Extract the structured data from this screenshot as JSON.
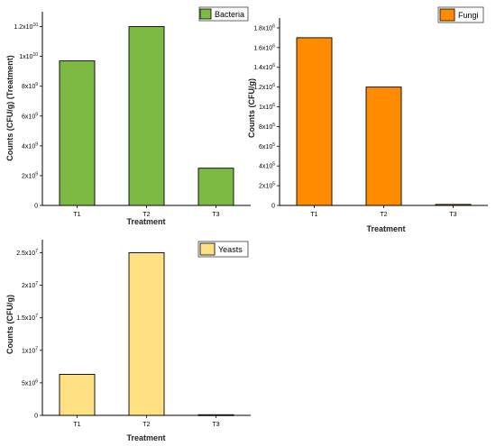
{
  "chart_data": [
    {
      "type": "bar",
      "categories": [
        "T1",
        "T2",
        "T3"
      ],
      "series": [
        {
          "name": "Bacteria",
          "values": [
            9700000000.0,
            12000000000.0,
            2500000000.0
          ]
        }
      ],
      "color": "#7cba44",
      "xlabel": "Treatment",
      "ylabel": "Counts (CFU/g) (Treatment)",
      "ylim": [
        0,
        13000000000.0
      ],
      "yticks": [
        {
          "value": 0,
          "mant": "0",
          "exp": ""
        },
        {
          "value": 2000000000.0,
          "mant": "2x10",
          "exp": "9"
        },
        {
          "value": 4000000000.0,
          "mant": "4x10",
          "exp": "9"
        },
        {
          "value": 6000000000.0,
          "mant": "6x10",
          "exp": "9"
        },
        {
          "value": 8000000000.0,
          "mant": "8x10",
          "exp": "9"
        },
        {
          "value": 10000000000.0,
          "mant": "1x10",
          "exp": "10"
        },
        {
          "value": 12000000000.0,
          "mant": "1.2x10",
          "exp": "10"
        }
      ],
      "legend": "top-right",
      "grid": false
    },
    {
      "type": "bar",
      "categories": [
        "T1",
        "T2",
        "T3"
      ],
      "series": [
        {
          "name": "Fungi",
          "values": [
            1700000.0,
            1200000.0,
            10000.0
          ]
        }
      ],
      "color": "#ff8c00",
      "xlabel": "Treatment",
      "ylabel": "Counts (CFU/g)",
      "ylim": [
        0,
        1900000.0
      ],
      "yticks": [
        {
          "value": 0,
          "mant": "0",
          "exp": ""
        },
        {
          "value": 200000.0,
          "mant": "2x10",
          "exp": "5"
        },
        {
          "value": 400000.0,
          "mant": "4x10",
          "exp": "5"
        },
        {
          "value": 600000.0,
          "mant": "6x10",
          "exp": "5"
        },
        {
          "value": 800000.0,
          "mant": "8x10",
          "exp": "5"
        },
        {
          "value": 1000000.0,
          "mant": "1x10",
          "exp": "6"
        },
        {
          "value": 1200000.0,
          "mant": "1.2x10",
          "exp": "6"
        },
        {
          "value": 1400000.0,
          "mant": "1.4x10",
          "exp": "6"
        },
        {
          "value": 1600000.0,
          "mant": "1.6x10",
          "exp": "6"
        },
        {
          "value": 1800000.0,
          "mant": "1.8x10",
          "exp": "6"
        }
      ],
      "legend": "top-right",
      "grid": false
    },
    {
      "type": "bar",
      "categories": [
        "T1",
        "T2",
        "T3"
      ],
      "series": [
        {
          "name": "Yeasts",
          "values": [
            6300000.0,
            25000000.0,
            100000.0
          ]
        }
      ],
      "color": "#ffe082",
      "xlabel": "Treatment",
      "ylabel": "Counts (CFU/g)",
      "ylim": [
        0,
        27000000.0
      ],
      "yticks": [
        {
          "value": 0,
          "mant": "0",
          "exp": ""
        },
        {
          "value": 5000000.0,
          "mant": "5x10",
          "exp": "6"
        },
        {
          "value": 10000000.0,
          "mant": "1x10",
          "exp": "7"
        },
        {
          "value": 15000000.0,
          "mant": "1.5x10",
          "exp": "7"
        },
        {
          "value": 20000000.0,
          "mant": "2x10",
          "exp": "7"
        },
        {
          "value": 25000000.0,
          "mant": "2.5x10",
          "exp": "7"
        }
      ],
      "legend": "top-right",
      "grid": false
    }
  ]
}
